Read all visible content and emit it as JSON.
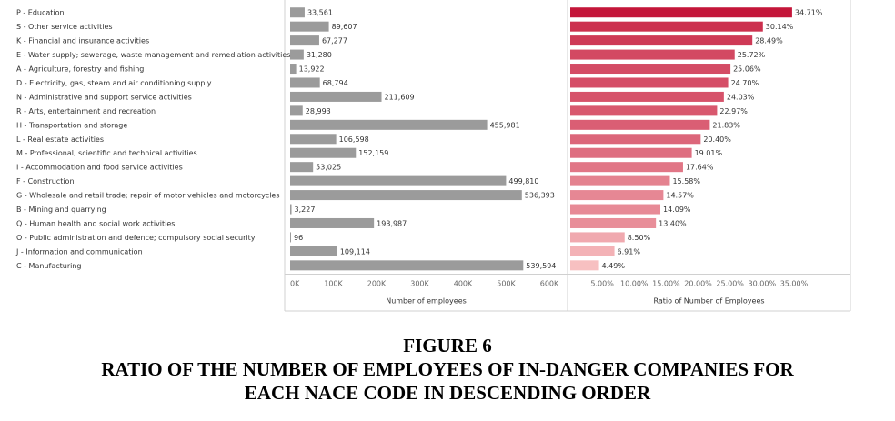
{
  "colors": {
    "bar_gray": "#9b9b9b",
    "ratio_dark": "#c4163a",
    "ratio_light": "#f7c0c1"
  },
  "chart_data": [
    {
      "type": "bar",
      "orientation": "horizontal",
      "categories": [
        "P - Education",
        "S - Other service activities",
        "K - Financial and insurance activities",
        "E - Water supply; sewerage, waste management and remediation activities",
        "A - Agriculture, forestry and fishing",
        "D - Electricity, gas, steam and air conditioning supply",
        "N - Administrative and support service activities",
        "R - Arts, entertainment and recreation",
        "H - Transportation and storage",
        "L - Real estate activities",
        "M - Professional, scientific and technical activities",
        "I - Accommodation and food service activities",
        "F - Construction",
        "G - Wholesale and retail trade; repair of motor vehicles and motorcycles",
        "B - Mining and quarrying",
        "Q - Human health and social work activities",
        "O - Public administration and defence; compulsory social security",
        "J - Information and communication",
        "C - Manufacturing"
      ],
      "values": [
        33561,
        89607,
        67277,
        31280,
        13922,
        68794,
        211609,
        28993,
        455981,
        106598,
        152159,
        53025,
        499810,
        536393,
        3227,
        193987,
        96,
        109114,
        539594
      ],
      "value_labels": [
        "33,561",
        "89,607",
        "67,277",
        "31,280",
        "13,922",
        "68,794",
        "211,609",
        "28,993",
        "455,981",
        "106,598",
        "152,159",
        "53,025",
        "499,810",
        "536,393",
        "3,227",
        "193,987",
        "96",
        "109,114",
        "539,594"
      ],
      "xlabel": "Number of employees",
      "xlim": [
        0,
        600000
      ],
      "ticks": [
        "0K",
        "100K",
        "200K",
        "300K",
        "400K",
        "500K",
        "600K"
      ]
    },
    {
      "type": "bar",
      "orientation": "horizontal",
      "values": [
        34.71,
        30.14,
        28.49,
        25.72,
        25.06,
        24.7,
        24.03,
        22.97,
        21.83,
        20.4,
        19.01,
        17.64,
        15.58,
        14.57,
        14.09,
        13.4,
        8.5,
        6.91,
        4.49
      ],
      "value_labels": [
        "34.71%",
        "30.14%",
        "28.49%",
        "25.72%",
        "25.06%",
        "24.70%",
        "24.03%",
        "22.97%",
        "21.83%",
        "20.40%",
        "19.01%",
        "17.64%",
        "15.58%",
        "14.57%",
        "14.09%",
        "13.40%",
        "8.50%",
        "6.91%",
        "4.49%"
      ],
      "xlabel": "Ratio of Number of Employees",
      "xlim": [
        0,
        37
      ],
      "ticks": [
        "5.00%",
        "10.00%",
        "15.00%",
        "20.00%",
        "25.00%",
        "30.00%",
        "35.00%"
      ],
      "tick_values": [
        5,
        10,
        15,
        20,
        25,
        30,
        35
      ]
    }
  ],
  "caption": {
    "figure_label": "FIGURE 6",
    "title_line1": "RATIO OF THE NUMBER OF EMPLOYEES OF IN-DANGER COMPANIES FOR",
    "title_line2": "EACH NACE CODE IN DESCENDING ORDER"
  }
}
